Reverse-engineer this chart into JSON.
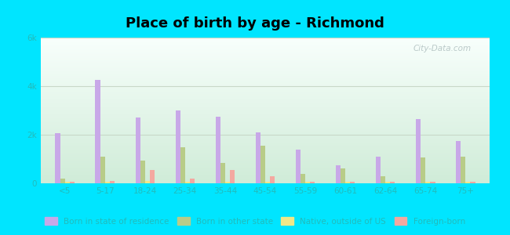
{
  "title": "Place of birth by age - Richmond",
  "categories": [
    "<5",
    "5-17",
    "18-24",
    "25-34",
    "35-44",
    "45-54",
    "55-59",
    "60-61",
    "62-64",
    "65-74",
    "75+"
  ],
  "series": {
    "Born in state of residence": [
      2050,
      4250,
      2700,
      3000,
      2750,
      2100,
      1400,
      750,
      1100,
      2650,
      1750
    ],
    "Born in other state": [
      200,
      1100,
      950,
      1500,
      850,
      1550,
      400,
      600,
      300,
      1050,
      1100
    ],
    "Native, outside of US": [
      50,
      50,
      100,
      80,
      80,
      80,
      50,
      50,
      50,
      50,
      50
    ],
    "Foreign-born": [
      80,
      100,
      550,
      200,
      550,
      300,
      80,
      80,
      80,
      80,
      80
    ]
  },
  "colors": {
    "Born in state of residence": "#c8a8e8",
    "Born in other state": "#b8cc88",
    "Native, outside of US": "#f0e888",
    "Foreign-born": "#f4a8a0"
  },
  "ylim": [
    0,
    6000
  ],
  "yticks": [
    0,
    2000,
    4000,
    6000
  ],
  "ytick_labels": [
    "0",
    "2k",
    "4k",
    "6k"
  ],
  "outer_background": "#00e5ff",
  "grid_color": "#c8d8c8",
  "bar_width": 0.12,
  "title_fontsize": 13,
  "tick_color": "#22bbbb",
  "legend_label_color": "#22bbbb"
}
